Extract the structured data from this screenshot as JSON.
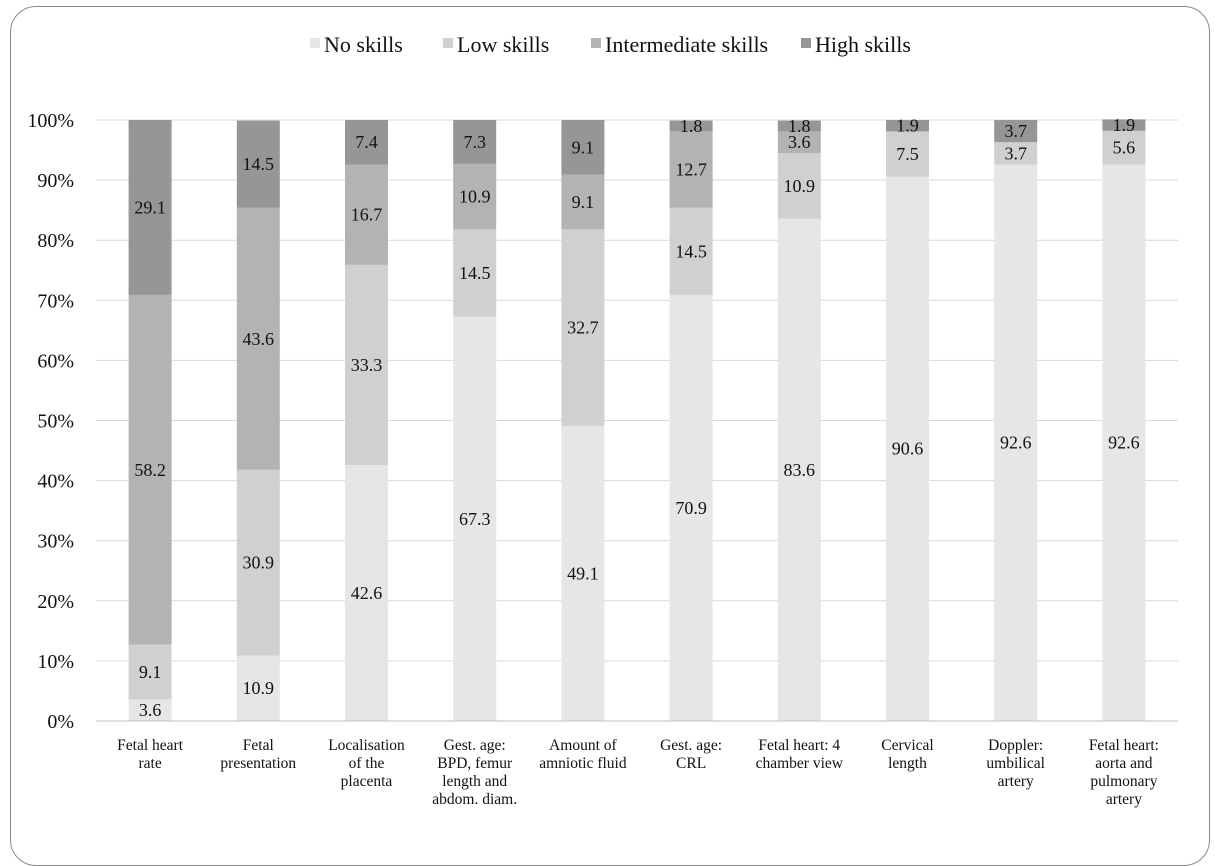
{
  "chart_data": {
    "type": "bar",
    "stacked": true,
    "percent": true,
    "title": "",
    "xlabel": "",
    "ylabel": "",
    "ylim": [
      0,
      100
    ],
    "y_ticks": [
      "0%",
      "10%",
      "20%",
      "30%",
      "40%",
      "50%",
      "60%",
      "70%",
      "80%",
      "90%",
      "100%"
    ],
    "grid": true,
    "legend_position": "top",
    "categories": [
      [
        "Fetal heart",
        "rate"
      ],
      [
        "Fetal",
        "presentation"
      ],
      [
        "Localisation",
        "of the",
        "placenta"
      ],
      [
        "Gest. age:",
        "BPD, femur",
        "length and",
        "abdom. diam."
      ],
      [
        "Amount of",
        "amniotic fluid"
      ],
      [
        "Gest. age:",
        "CRL"
      ],
      [
        "Fetal heart: 4",
        "chamber view"
      ],
      [
        "Cervical",
        "length"
      ],
      [
        "Doppler:",
        "umbilical",
        "artery"
      ],
      [
        "Fetal heart:",
        "aorta and",
        "pulmonary",
        "artery"
      ]
    ],
    "series": [
      {
        "name": "No skills",
        "color": "#e6e6e6",
        "values": [
          3.6,
          10.9,
          42.6,
          67.3,
          49.1,
          70.9,
          83.6,
          90.6,
          92.6,
          92.6
        ],
        "labels": [
          "3.6",
          "10.9",
          "42.6",
          "67.3",
          "49.1",
          "70.9",
          "83.6",
          "90.6",
          "92.6",
          "92.6"
        ]
      },
      {
        "name": "Low skills",
        "color": "#d0d0d0",
        "values": [
          9.1,
          30.9,
          33.3,
          14.5,
          32.7,
          14.5,
          10.9,
          7.5,
          3.7,
          5.6
        ],
        "labels": [
          "9.1",
          "30.9",
          "33.3",
          "14.5",
          "32.7",
          "14.5",
          "10.9",
          "7.5",
          "3.7",
          "5.6"
        ]
      },
      {
        "name": "Intermediate skills",
        "color": "#b3b3b3",
        "values": [
          58.2,
          43.6,
          16.7,
          10.9,
          9.1,
          12.7,
          3.6,
          0,
          0,
          0
        ],
        "labels": [
          "58.2",
          "43.6",
          "16.7",
          "10.9",
          "9.1",
          "12.7",
          "3.6",
          "",
          "",
          ""
        ]
      },
      {
        "name": "High skills",
        "color": "#969696",
        "values": [
          29.1,
          14.5,
          7.4,
          7.3,
          9.1,
          1.8,
          1.8,
          1.9,
          3.7,
          1.9
        ],
        "labels": [
          "29.1",
          "14.5",
          "7.4",
          "7.3",
          "9.1",
          "1.8",
          "1.8",
          "1.9",
          "3.7",
          "1.9"
        ]
      }
    ]
  }
}
